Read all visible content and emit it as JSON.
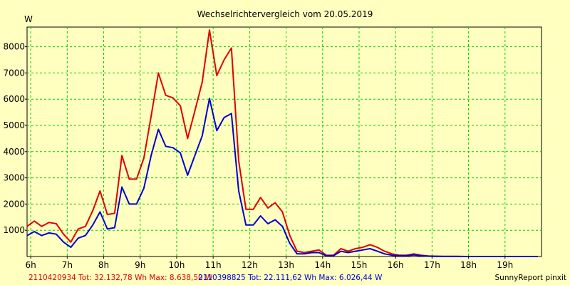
{
  "chart_data": {
    "type": "line",
    "title": "Wechselrichtervergleich vom 20.05.2019",
    "ylabel": "W",
    "xlabel": "",
    "ylim": [
      0,
      8750
    ],
    "xlim": [
      5.9,
      20.0
    ],
    "grid": true,
    "y_ticks": [
      1000,
      2000,
      3000,
      4000,
      5000,
      6000,
      7000,
      8000
    ],
    "y_tick_labels": [
      "1000",
      "2000",
      "3000",
      "4000",
      "5000",
      "6000",
      "7000",
      "8000"
    ],
    "x_ticks": [
      6,
      7,
      8,
      9,
      10,
      11,
      12,
      13,
      14,
      15,
      16,
      17,
      18,
      19
    ],
    "x_tick_labels": [
      "6h",
      "7h",
      "8h",
      "9h",
      "10h",
      "11h",
      "12h",
      "13h",
      "14h",
      "15h",
      "16h",
      "17h",
      "18h",
      "19h"
    ],
    "series": [
      {
        "name": "2110420934",
        "color": "#e00000",
        "x": [
          5.9,
          6.1,
          6.3,
          6.5,
          6.7,
          6.9,
          7.1,
          7.3,
          7.5,
          7.7,
          7.9,
          8.1,
          8.3,
          8.5,
          8.7,
          8.9,
          9.1,
          9.3,
          9.5,
          9.7,
          9.9,
          10.1,
          10.3,
          10.5,
          10.7,
          10.9,
          11.1,
          11.3,
          11.5,
          11.7,
          11.9,
          12.1,
          12.3,
          12.5,
          12.7,
          12.9,
          13.1,
          13.3,
          13.5,
          13.7,
          13.9,
          14.1,
          14.3,
          14.5,
          14.7,
          14.9,
          15.1,
          15.3,
          15.5,
          15.7,
          15.9,
          16.1,
          16.3,
          16.5,
          16.7,
          16.9,
          17.1,
          17.3,
          17.5,
          17.7,
          17.9,
          18.1,
          18.3,
          18.5,
          18.7,
          18.9,
          19.1,
          19.3,
          19.5,
          19.7,
          19.9
        ],
        "y": [
          1150,
          1350,
          1150,
          1300,
          1250,
          850,
          550,
          1050,
          1150,
          1750,
          2500,
          1600,
          1650,
          3850,
          2950,
          2950,
          3750,
          5350,
          7000,
          6150,
          6050,
          5750,
          4500,
          5550,
          6650,
          8638,
          6900,
          7500,
          7950,
          3650,
          1800,
          1800,
          2250,
          1850,
          2050,
          1700,
          800,
          200,
          150,
          200,
          250,
          50,
          50,
          300,
          200,
          300,
          350,
          450,
          350,
          200,
          100,
          50,
          50,
          100,
          50,
          20,
          10,
          5,
          5,
          5,
          0,
          0,
          0,
          0,
          0,
          0,
          0,
          0,
          0,
          0,
          0
        ]
      },
      {
        "name": "2110398825",
        "color": "#0000d0",
        "x": [
          5.9,
          6.1,
          6.3,
          6.5,
          6.7,
          6.9,
          7.1,
          7.3,
          7.5,
          7.7,
          7.9,
          8.1,
          8.3,
          8.5,
          8.7,
          8.9,
          9.1,
          9.3,
          9.5,
          9.7,
          9.9,
          10.1,
          10.3,
          10.5,
          10.7,
          10.9,
          11.1,
          11.3,
          11.5,
          11.7,
          11.9,
          12.1,
          12.3,
          12.5,
          12.7,
          12.9,
          13.1,
          13.3,
          13.5,
          13.7,
          13.9,
          14.1,
          14.3,
          14.5,
          14.7,
          14.9,
          15.1,
          15.3,
          15.5,
          15.7,
          15.9,
          16.1,
          16.3,
          16.5,
          16.7,
          16.9,
          17.1,
          17.3,
          17.5,
          17.7,
          17.9,
          18.1,
          18.3,
          18.5,
          18.7,
          18.9,
          19.1,
          19.3,
          19.5,
          19.7,
          19.9
        ],
        "y": [
          800,
          950,
          800,
          900,
          850,
          550,
          350,
          700,
          800,
          1200,
          1700,
          1050,
          1100,
          2650,
          2000,
          2000,
          2600,
          3850,
          4850,
          4200,
          4150,
          3950,
          3100,
          3850,
          4600,
          6026,
          4800,
          5300,
          5450,
          2500,
          1200,
          1200,
          1550,
          1250,
          1400,
          1150,
          500,
          100,
          100,
          150,
          150,
          30,
          30,
          200,
          150,
          200,
          250,
          300,
          200,
          100,
          50,
          30,
          30,
          60,
          30,
          10,
          5,
          0,
          0,
          0,
          0,
          0,
          0,
          0,
          0,
          0,
          0,
          0,
          0,
          0,
          0
        ]
      }
    ],
    "footer": {
      "left": "2110420934 Tot: 32.132,78 Wh Max: 8.638,50 W",
      "middle": "2110398825 Tot: 22.111,62 Wh Max: 6.026,44 W",
      "right": "SunnyReport pinxit"
    }
  },
  "colors": {
    "background": "#ffffc0",
    "grid": "#00cc00",
    "axis": "#000000"
  }
}
